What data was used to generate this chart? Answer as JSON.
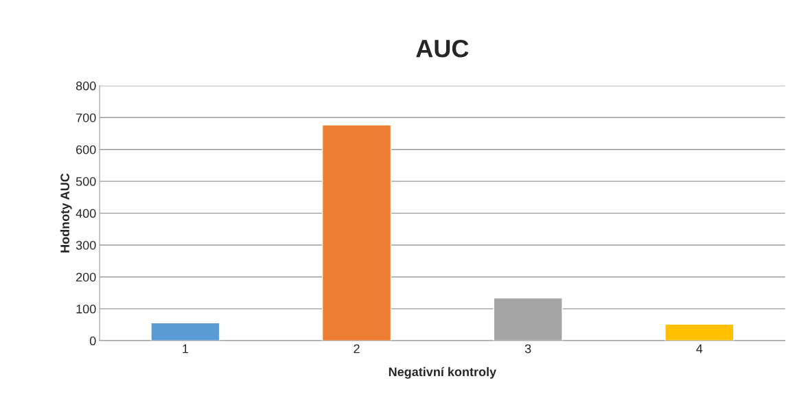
{
  "chart_data": {
    "type": "bar",
    "title": "AUC",
    "xlabel": "Negativní kontroly",
    "ylabel": "Hodnoty AUC",
    "categories": [
      "1",
      "2",
      "3",
      "4"
    ],
    "values": [
      56,
      677,
      134,
      52
    ],
    "colors": [
      "#5b9bd5",
      "#ed7d31",
      "#a5a5a5",
      "#ffc000"
    ],
    "ylim": [
      0,
      800
    ],
    "yticks": [
      0,
      100,
      200,
      300,
      400,
      500,
      600,
      700,
      800
    ],
    "grid": "y",
    "legend": false
  }
}
